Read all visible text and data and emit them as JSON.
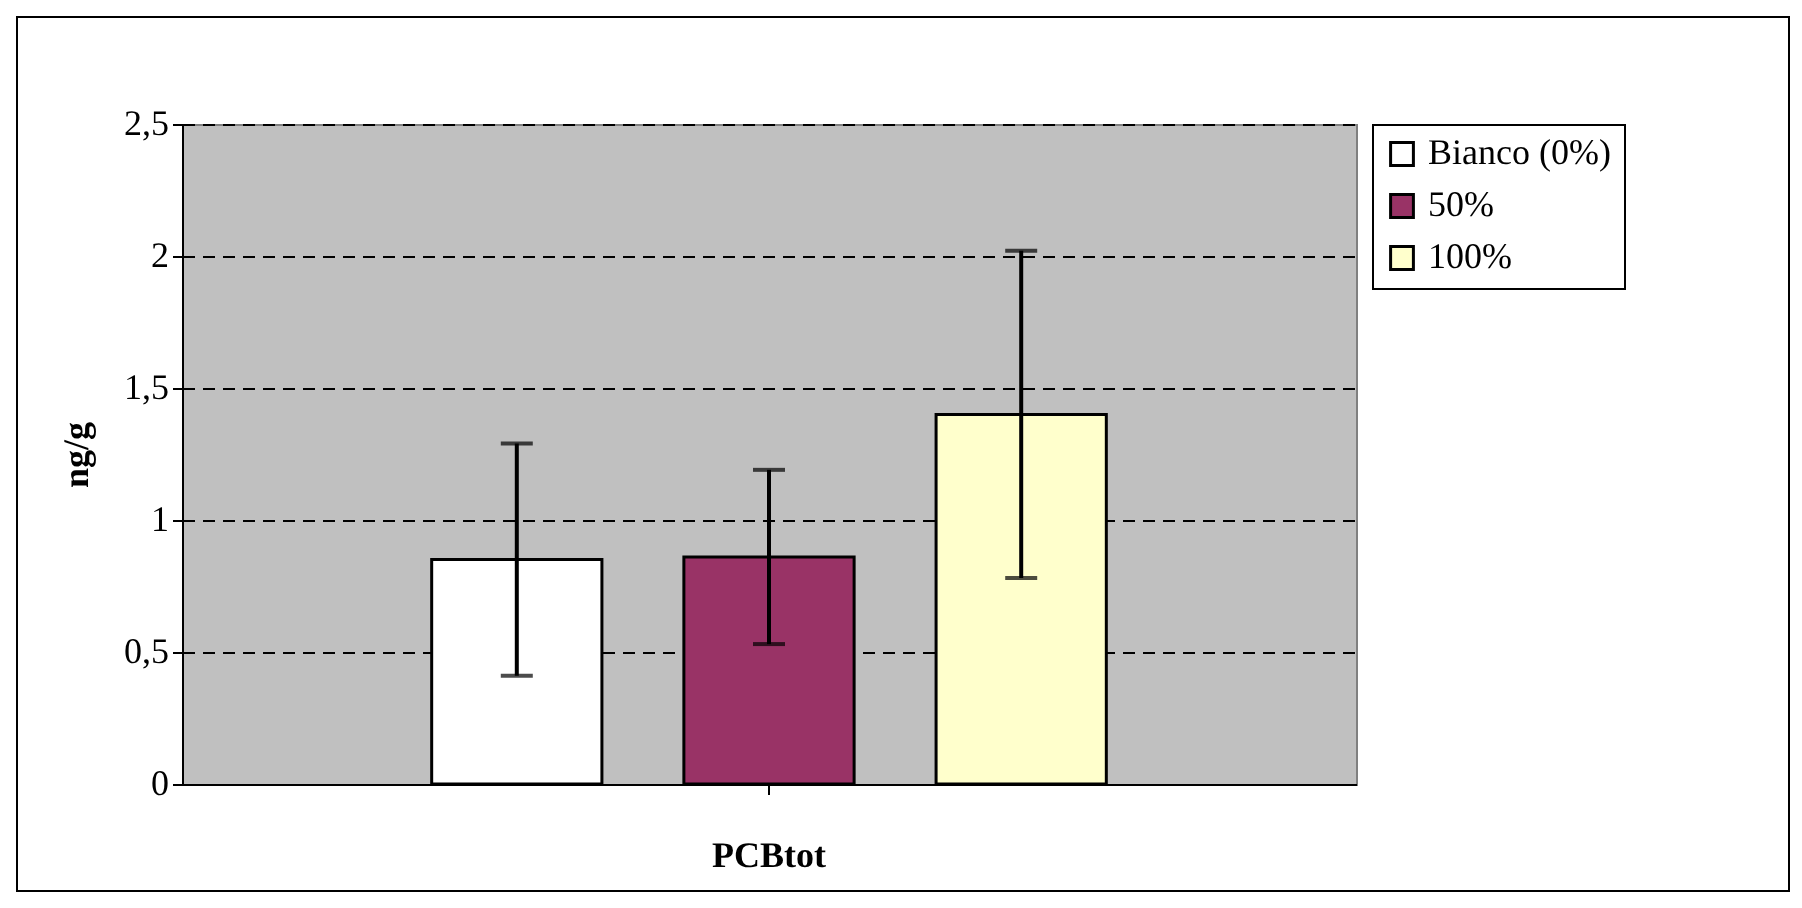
{
  "chart_data": {
    "type": "bar",
    "categories": [
      "PCBtot"
    ],
    "ylabel": "ng/g",
    "series": [
      {
        "name": "Bianco (0%)",
        "color": "#ffffff",
        "values": [
          0.85
        ],
        "errors": [
          0.44
        ]
      },
      {
        "name": "50%",
        "color": "#993366",
        "values": [
          0.86
        ],
        "errors": [
          0.33
        ]
      },
      {
        "name": "100%",
        "color": "#ffffcc",
        "values": [
          1.4
        ],
        "errors": [
          0.62
        ]
      }
    ],
    "ylim": [
      0,
      2.5
    ],
    "yticks": [
      0,
      {
        "value": 0.5,
        "label": "0,5"
      },
      1,
      {
        "value": 1.5,
        "label": "1,5"
      },
      2,
      {
        "value": 2.5,
        "label": "2,5"
      }
    ],
    "grid": "y",
    "line_style": "dashed",
    "legend": "right"
  }
}
